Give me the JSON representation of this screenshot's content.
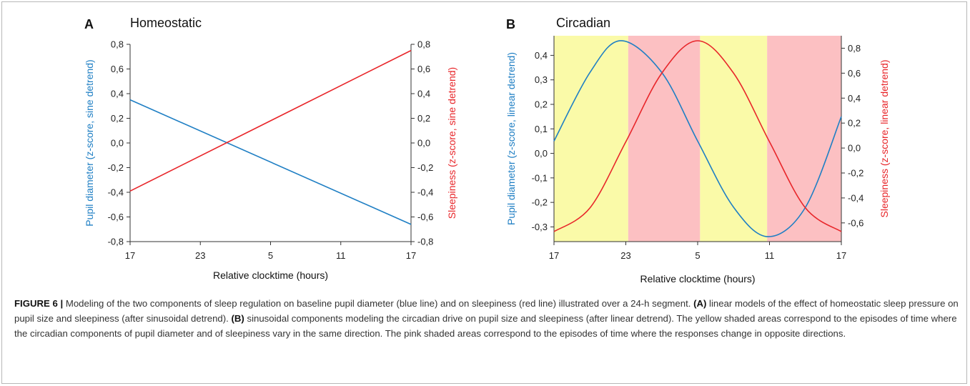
{
  "colors": {
    "pupil": "#1f7fc4",
    "sleepiness": "#e8262a",
    "same_direction": "#fafaa8",
    "opposite_direction": "#fcc0c2"
  },
  "chart_data": [
    {
      "type": "line",
      "panel_letter": "A",
      "title": "Homeostatic",
      "xlabel": "Relative clocktime (hours)",
      "xtick_labels": [
        "17",
        "23",
        "5",
        "11",
        "17"
      ],
      "xlim": [
        0,
        24
      ],
      "ylabel_left": "Pupil diameter (z-score, sine detrend)",
      "ylabel_right": "Sleepiness (z-score, sine detrend)",
      "ylim_left": [
        -0.8,
        0.8
      ],
      "ylim_right": [
        -0.8,
        0.8
      ],
      "yticks_left": [
        "0,8",
        "0,6",
        "0,4",
        "0,2",
        "0,0",
        "-0,2",
        "-0,4",
        "-0,6",
        "-0,8"
      ],
      "yticks_right": [
        "0,8",
        "0,6",
        "0,4",
        "0,2",
        "0,0",
        "-0,2",
        "-0,4",
        "-0,6",
        "-0,8"
      ],
      "series": [
        {
          "axis": "left",
          "x": [
            0,
            24
          ],
          "y": [
            0.35,
            -0.66
          ]
        },
        {
          "axis": "right",
          "x": [
            0,
            24
          ],
          "y": [
            -0.39,
            0.75
          ]
        }
      ]
    },
    {
      "type": "line",
      "panel_letter": "B",
      "title": "Circadian",
      "xlabel": "Relative clocktime (hours)",
      "xtick_labels": [
        "17",
        "23",
        "5",
        "11",
        "17"
      ],
      "xlim": [
        0,
        24
      ],
      "ylabel_left": "Pupil diameter (z-score, linear detrend)",
      "ylabel_right": "Sleepiness (z-score, linear detrend)",
      "ylim_left": [
        -0.36,
        0.48
      ],
      "ylim_right": [
        -0.75,
        0.9
      ],
      "yticks_left": [
        "0,4",
        "0,3",
        "0,2",
        "0,1",
        "0,0",
        "-0,1",
        "-0,2",
        "-0,3"
      ],
      "yticks_right": [
        "0,8",
        "0,6",
        "0,4",
        "0,2",
        "0,0",
        "-0,2",
        "-0,4",
        "-0,6"
      ],
      "shaded_regions": [
        {
          "from": 0,
          "to": 6.2,
          "kind": "same_direction"
        },
        {
          "from": 6.2,
          "to": 12.2,
          "kind": "opposite_direction"
        },
        {
          "from": 12.2,
          "to": 17.8,
          "kind": "same_direction"
        },
        {
          "from": 17.8,
          "to": 24,
          "kind": "opposite_direction"
        }
      ],
      "series": [
        {
          "axis": "left",
          "x": [
            0,
            3,
            5.6,
            9,
            12,
            15,
            17.9,
            21,
            24
          ],
          "y": [
            0.05,
            0.33,
            0.46,
            0.33,
            0.05,
            -0.22,
            -0.34,
            -0.22,
            0.15
          ]
        },
        {
          "axis": "right",
          "x": [
            0,
            3,
            6,
            9,
            12,
            15,
            18,
            21,
            24
          ],
          "y": [
            -0.67,
            -0.48,
            0.05,
            0.6,
            0.86,
            0.6,
            0.05,
            -0.48,
            -0.67
          ]
        }
      ]
    }
  ],
  "caption": {
    "figure_label": "FIGURE 6 |",
    "intro": " Modeling of the two components of sleep regulation on baseline pupil diameter (blue line) and on sleepiness (red line) illustrated over a 24-h segment. ",
    "label_a": "(A)",
    "text_a": " linear models of the effect of homeostatic sleep pressure on pupil size and sleepiness (after sinusoidal detrend). ",
    "label_b": "(B)",
    "text_b": " sinusoidal components modeling the circadian drive on pupil size and sleepiness (after linear detrend). The yellow shaded areas correspond to the episodes of time where the circadian components of pupil diameter and of sleepiness vary in the same direction. The pink shaded areas correspond to the episodes of time where the responses change in opposite directions."
  }
}
